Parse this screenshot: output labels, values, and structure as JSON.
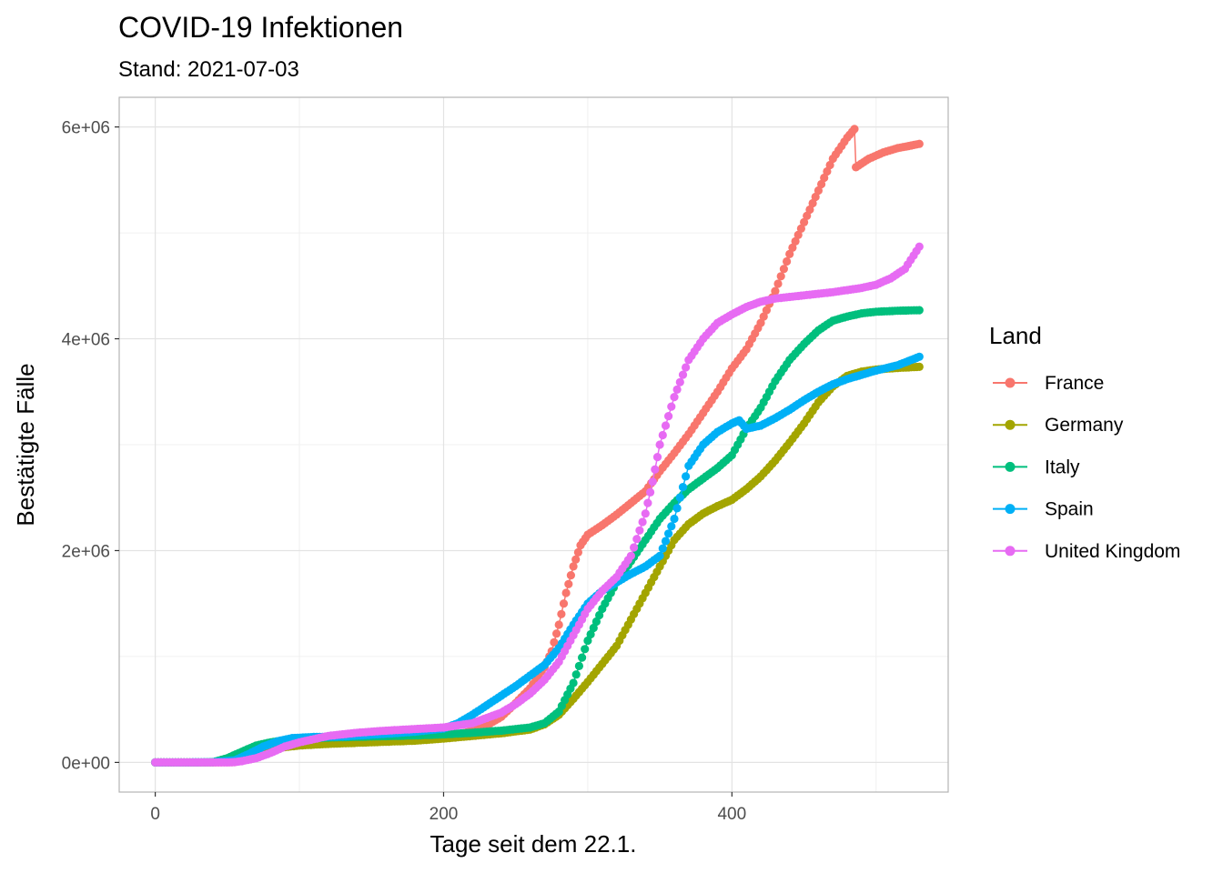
{
  "chart_data": {
    "type": "line",
    "title": "COVID-19 Infektionen",
    "subtitle": "Stand: 2021-07-03",
    "xlabel": "Tage seit dem 22.1.",
    "ylabel": "Bestätigte Fälle",
    "xlim": [
      -25,
      550
    ],
    "ylim": [
      -280000,
      6280000
    ],
    "x_ticks": [
      0,
      200,
      400
    ],
    "x_tick_labels": [
      "0",
      "200",
      "400"
    ],
    "y_ticks": [
      0,
      2000000,
      4000000,
      6000000
    ],
    "y_tick_labels": [
      "0e+00",
      "2e+06",
      "4e+06",
      "6e+06"
    ],
    "grid": true,
    "legend_title": "Land",
    "legend_position": "right",
    "series": [
      {
        "name": "France",
        "color": "#F8766D",
        "points": [
          [
            0,
            0
          ],
          [
            40,
            100
          ],
          [
            55,
            3000
          ],
          [
            65,
            30000
          ],
          [
            70,
            90000
          ],
          [
            80,
            140000
          ],
          [
            90,
            170000
          ],
          [
            110,
            185000
          ],
          [
            150,
            200000
          ],
          [
            180,
            215000
          ],
          [
            200,
            235000
          ],
          [
            210,
            260000
          ],
          [
            220,
            300000
          ],
          [
            230,
            350000
          ],
          [
            240,
            430000
          ],
          [
            250,
            560000
          ],
          [
            260,
            700000
          ],
          [
            270,
            900000
          ],
          [
            275,
            1050000
          ],
          [
            280,
            1300000
          ],
          [
            285,
            1600000
          ],
          [
            290,
            1850000
          ],
          [
            295,
            2050000
          ],
          [
            300,
            2150000
          ],
          [
            310,
            2240000
          ],
          [
            320,
            2340000
          ],
          [
            330,
            2450000
          ],
          [
            340,
            2560000
          ],
          [
            350,
            2750000
          ],
          [
            360,
            2920000
          ],
          [
            370,
            3100000
          ],
          [
            380,
            3300000
          ],
          [
            390,
            3500000
          ],
          [
            400,
            3720000
          ],
          [
            410,
            3900000
          ],
          [
            420,
            4150000
          ],
          [
            430,
            4450000
          ],
          [
            440,
            4800000
          ],
          [
            450,
            5100000
          ],
          [
            460,
            5400000
          ],
          [
            470,
            5700000
          ],
          [
            480,
            5900000
          ],
          [
            485,
            5980000
          ],
          [
            486,
            5620000
          ],
          [
            495,
            5700000
          ],
          [
            505,
            5760000
          ],
          [
            515,
            5800000
          ],
          [
            530,
            5840000
          ]
        ]
      },
      {
        "name": "Germany",
        "color": "#A3A500",
        "points": [
          [
            0,
            0
          ],
          [
            40,
            1000
          ],
          [
            55,
            10000
          ],
          [
            65,
            60000
          ],
          [
            75,
            110000
          ],
          [
            90,
            145000
          ],
          [
            100,
            160000
          ],
          [
            120,
            175000
          ],
          [
            150,
            190000
          ],
          [
            180,
            205000
          ],
          [
            200,
            225000
          ],
          [
            220,
            250000
          ],
          [
            240,
            275000
          ],
          [
            260,
            310000
          ],
          [
            270,
            360000
          ],
          [
            280,
            450000
          ],
          [
            290,
            600000
          ],
          [
            300,
            760000
          ],
          [
            310,
            930000
          ],
          [
            320,
            1100000
          ],
          [
            330,
            1350000
          ],
          [
            340,
            1600000
          ],
          [
            350,
            1850000
          ],
          [
            360,
            2100000
          ],
          [
            370,
            2250000
          ],
          [
            380,
            2350000
          ],
          [
            390,
            2420000
          ],
          [
            400,
            2480000
          ],
          [
            410,
            2580000
          ],
          [
            420,
            2700000
          ],
          [
            430,
            2850000
          ],
          [
            440,
            3020000
          ],
          [
            450,
            3200000
          ],
          [
            460,
            3400000
          ],
          [
            470,
            3550000
          ],
          [
            480,
            3650000
          ],
          [
            490,
            3690000
          ],
          [
            500,
            3710000
          ],
          [
            515,
            3725000
          ],
          [
            530,
            3735000
          ]
        ]
      },
      {
        "name": "Italy",
        "color": "#00BF7D",
        "points": [
          [
            0,
            0
          ],
          [
            30,
            200
          ],
          [
            40,
            3000
          ],
          [
            50,
            40000
          ],
          [
            60,
            100000
          ],
          [
            70,
            160000
          ],
          [
            80,
            190000
          ],
          [
            90,
            210000
          ],
          [
            100,
            220000
          ],
          [
            120,
            235000
          ],
          [
            150,
            245000
          ],
          [
            180,
            255000
          ],
          [
            200,
            265000
          ],
          [
            220,
            280000
          ],
          [
            240,
            300000
          ],
          [
            260,
            330000
          ],
          [
            270,
            370000
          ],
          [
            280,
            480000
          ],
          [
            290,
            750000
          ],
          [
            300,
            1150000
          ],
          [
            310,
            1450000
          ],
          [
            320,
            1700000
          ],
          [
            330,
            1900000
          ],
          [
            340,
            2100000
          ],
          [
            350,
            2300000
          ],
          [
            360,
            2450000
          ],
          [
            370,
            2580000
          ],
          [
            380,
            2680000
          ],
          [
            390,
            2780000
          ],
          [
            400,
            2900000
          ],
          [
            410,
            3150000
          ],
          [
            420,
            3350000
          ],
          [
            430,
            3600000
          ],
          [
            440,
            3800000
          ],
          [
            450,
            3950000
          ],
          [
            460,
            4080000
          ],
          [
            470,
            4170000
          ],
          [
            480,
            4210000
          ],
          [
            490,
            4240000
          ],
          [
            500,
            4255000
          ],
          [
            515,
            4265000
          ],
          [
            530,
            4270000
          ]
        ]
      },
      {
        "name": "Spain",
        "color": "#00B0F6",
        "points": [
          [
            0,
            0
          ],
          [
            40,
            2000
          ],
          [
            55,
            20000
          ],
          [
            65,
            80000
          ],
          [
            75,
            150000
          ],
          [
            85,
            200000
          ],
          [
            95,
            230000
          ],
          [
            110,
            240000
          ],
          [
            130,
            245000
          ],
          [
            160,
            270000
          ],
          [
            180,
            290000
          ],
          [
            200,
            320000
          ],
          [
            210,
            370000
          ],
          [
            220,
            450000
          ],
          [
            230,
            540000
          ],
          [
            240,
            630000
          ],
          [
            250,
            720000
          ],
          [
            260,
            820000
          ],
          [
            270,
            920000
          ],
          [
            280,
            1080000
          ],
          [
            290,
            1300000
          ],
          [
            300,
            1500000
          ],
          [
            310,
            1620000
          ],
          [
            320,
            1700000
          ],
          [
            330,
            1780000
          ],
          [
            340,
            1850000
          ],
          [
            350,
            1950000
          ],
          [
            360,
            2300000
          ],
          [
            370,
            2800000
          ],
          [
            380,
            3000000
          ],
          [
            390,
            3120000
          ],
          [
            400,
            3200000
          ],
          [
            405,
            3230000
          ],
          [
            410,
            3150000
          ],
          [
            420,
            3180000
          ],
          [
            430,
            3250000
          ],
          [
            440,
            3330000
          ],
          [
            450,
            3420000
          ],
          [
            460,
            3500000
          ],
          [
            470,
            3570000
          ],
          [
            480,
            3620000
          ],
          [
            490,
            3660000
          ],
          [
            500,
            3700000
          ],
          [
            515,
            3750000
          ],
          [
            530,
            3830000
          ]
        ]
      },
      {
        "name": "United Kingdom",
        "color": "#E76BF3",
        "points": [
          [
            0,
            0
          ],
          [
            50,
            100
          ],
          [
            55,
            3000
          ],
          [
            60,
            12000
          ],
          [
            70,
            40000
          ],
          [
            80,
            90000
          ],
          [
            90,
            150000
          ],
          [
            100,
            190000
          ],
          [
            110,
            220000
          ],
          [
            120,
            250000
          ],
          [
            140,
            280000
          ],
          [
            160,
            300000
          ],
          [
            180,
            315000
          ],
          [
            200,
            330000
          ],
          [
            220,
            370000
          ],
          [
            230,
            420000
          ],
          [
            240,
            470000
          ],
          [
            250,
            550000
          ],
          [
            260,
            650000
          ],
          [
            270,
            780000
          ],
          [
            280,
            950000
          ],
          [
            290,
            1200000
          ],
          [
            300,
            1450000
          ],
          [
            310,
            1620000
          ],
          [
            320,
            1750000
          ],
          [
            330,
            1950000
          ],
          [
            340,
            2350000
          ],
          [
            345,
            2650000
          ],
          [
            350,
            3000000
          ],
          [
            360,
            3450000
          ],
          [
            370,
            3800000
          ],
          [
            380,
            4000000
          ],
          [
            390,
            4150000
          ],
          [
            400,
            4230000
          ],
          [
            410,
            4300000
          ],
          [
            420,
            4350000
          ],
          [
            430,
            4380000
          ],
          [
            450,
            4410000
          ],
          [
            470,
            4440000
          ],
          [
            480,
            4460000
          ],
          [
            490,
            4480000
          ],
          [
            500,
            4510000
          ],
          [
            510,
            4570000
          ],
          [
            520,
            4660000
          ],
          [
            530,
            4870000
          ]
        ]
      }
    ]
  }
}
